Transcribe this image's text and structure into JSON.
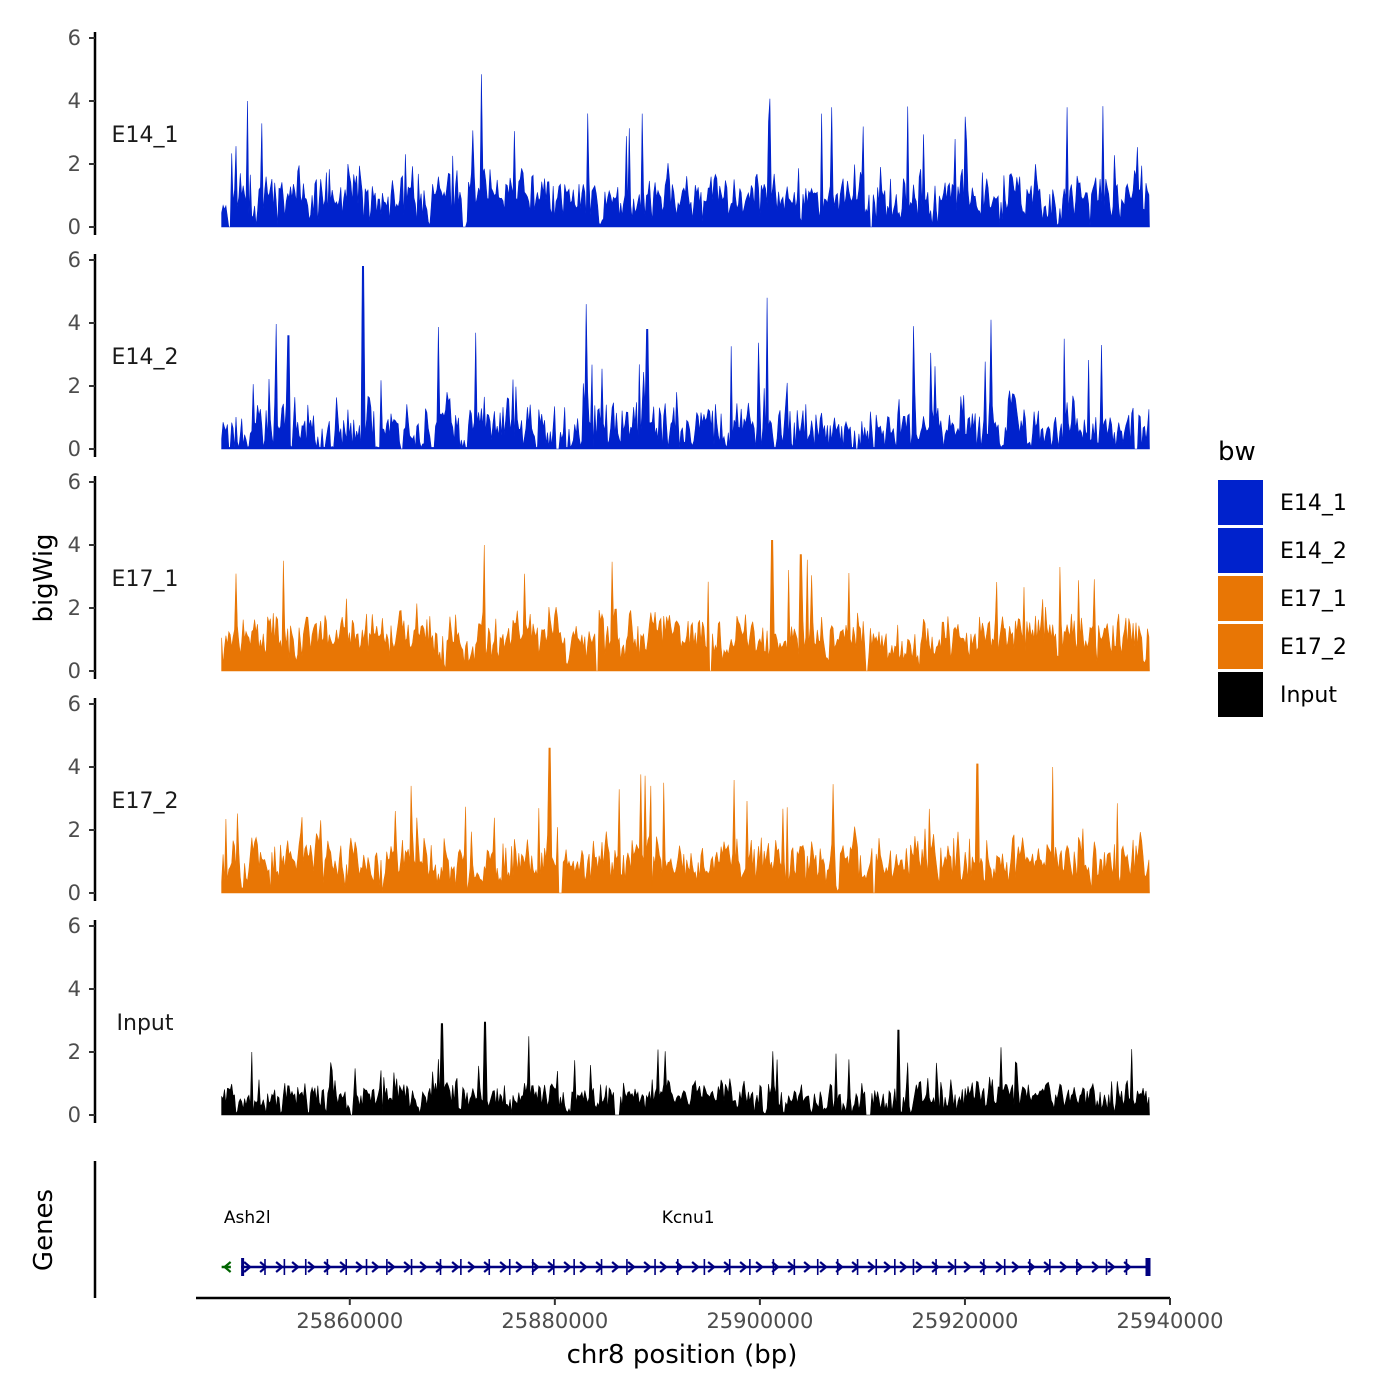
{
  "chart_data": {
    "type": "area",
    "ylabel": "bigWig",
    "xlabel": "chr8 position (bp)",
    "ylim": [
      0,
      6
    ],
    "yticks": [
      "0",
      "2",
      "4",
      "6"
    ],
    "xlim": [
      25845000,
      25940000
    ],
    "data_range": [
      25847500,
      25938000
    ],
    "xticks": [
      25860000,
      25880000,
      25900000,
      25920000,
      25940000
    ],
    "xtick_labels": [
      "25860000",
      "25880000",
      "25900000",
      "25920000",
      "25940000"
    ],
    "tracks": [
      {
        "name": "E14_1",
        "label": "E14_1",
        "color": "#0022cc",
        "seed": 11,
        "base": 0.9,
        "noise": 1.1,
        "spike_prob": 0.05,
        "spike_max": 3.0,
        "peaks": [
          [
            25850000,
            4.0
          ],
          [
            25872800,
            4.85
          ],
          [
            25888500,
            3.6
          ],
          [
            25906000,
            3.6
          ],
          [
            25920000,
            3.5
          ],
          [
            25930000,
            3.8
          ]
        ],
        "gaps": [
          [
            25848100,
            25848400
          ],
          [
            25871000,
            25871300
          ],
          [
            25910700,
            25911000
          ]
        ]
      },
      {
        "name": "E14_2",
        "label": "E14_2",
        "color": "#0022cc",
        "seed": 23,
        "base": 0.7,
        "noise": 1.2,
        "spike_prob": 0.05,
        "spike_max": 3.2,
        "peaks": [
          [
            25861300,
            5.8
          ],
          [
            25854000,
            3.6
          ],
          [
            25889000,
            3.8
          ],
          [
            25900700,
            4.8
          ],
          [
            25915000,
            3.9
          ],
          [
            25929700,
            3.5
          ]
        ],
        "gaps": [
          [
            25864900,
            25865200
          ],
          [
            25880000,
            25880400
          ],
          [
            25909300,
            25909600
          ],
          [
            25936500,
            25936900
          ]
        ]
      },
      {
        "name": "E17_1",
        "label": "E17_1",
        "color": "#e87605",
        "seed": 37,
        "base": 1.1,
        "noise": 1.0,
        "spike_prob": 0.05,
        "spike_max": 2.3,
        "peaks": [
          [
            25873100,
            4.0
          ],
          [
            25901200,
            4.15
          ],
          [
            25904000,
            3.7
          ],
          [
            25929300,
            3.3
          ],
          [
            25853500,
            3.5
          ]
        ],
        "gaps": [
          [
            25884000,
            25884300
          ],
          [
            25895000,
            25895300
          ],
          [
            25910300,
            25910600
          ]
        ]
      },
      {
        "name": "E17_2",
        "label": "E17_2",
        "color": "#e87605",
        "seed": 53,
        "base": 1.0,
        "noise": 1.1,
        "spike_prob": 0.05,
        "spike_max": 2.6,
        "peaks": [
          [
            25879500,
            4.6
          ],
          [
            25921200,
            4.1
          ],
          [
            25928600,
            4.0
          ],
          [
            25890600,
            3.5
          ],
          [
            25866000,
            3.4
          ]
        ],
        "gaps": [
          [
            25880300,
            25880700
          ],
          [
            25911000,
            25911300
          ]
        ]
      },
      {
        "name": "Input",
        "label": "Input",
        "color": "#000000",
        "seed": 71,
        "base": 0.55,
        "noise": 0.7,
        "spike_prob": 0.05,
        "spike_max": 1.8,
        "peaks": [
          [
            25869000,
            2.9
          ],
          [
            25873200,
            2.95
          ],
          [
            25913500,
            2.7
          ],
          [
            25877500,
            2.5
          ]
        ],
        "gaps": [
          [
            25860000,
            25860300
          ],
          [
            25885800,
            25886300
          ],
          [
            25910300,
            25910800
          ]
        ]
      }
    ],
    "genes": [
      {
        "name": "Ash2l",
        "start": 25847500,
        "end": 25848400,
        "strand": "-",
        "color": "#006400",
        "label_pos": 25850000
      },
      {
        "name": "Kcnu1",
        "start": 25849400,
        "end": 25938000,
        "strand": "+",
        "color": "#000080",
        "label_pos": 25893000
      }
    ],
    "genes_label": "Genes",
    "legend": {
      "title": "bw",
      "position": "right",
      "entries": [
        {
          "label": "E14_1",
          "color": "#0022cc"
        },
        {
          "label": "E14_2",
          "color": "#0022cc"
        },
        {
          "label": "E17_1",
          "color": "#e87605"
        },
        {
          "label": "E17_2",
          "color": "#e87605"
        },
        {
          "label": "Input",
          "color": "#000000"
        }
      ]
    }
  }
}
